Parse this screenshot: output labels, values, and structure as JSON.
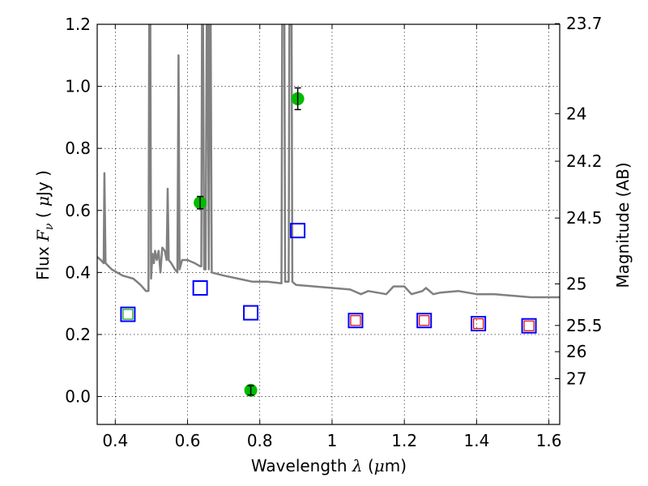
{
  "chart_data": {
    "type": "scatter",
    "xlabel": {
      "prefix": "Wavelength ",
      "symbol": "λ",
      "unit_open": " (",
      "unit_mu": "μ",
      "unit_rest": "m)"
    },
    "ylabel": {
      "prefix": "Flux ",
      "symbol": "F",
      "subscript": "ν",
      "unit_open": " ( ",
      "unit_mu": "μ",
      "unit_rest": "Jy )"
    },
    "y2label": "Magnitude (AB)",
    "xlim": [
      0.35,
      1.63
    ],
    "ylim": [
      -0.09,
      1.2
    ],
    "grid": true,
    "grid_style": "dotted",
    "x_ticks": [
      0.4,
      0.6,
      0.8,
      1.0,
      1.2,
      1.4,
      1.6
    ],
    "x_tick_labels": [
      "0.4",
      "0.6",
      "0.8",
      "1",
      "1.2",
      "1.4",
      "1.6"
    ],
    "y_ticks": [
      0.0,
      0.2,
      0.4,
      0.6,
      0.8,
      1.0,
      1.2
    ],
    "y_tick_labels": [
      "0.0",
      "0.2",
      "0.4",
      "0.6",
      "0.8",
      "1.0",
      "1.2"
    ],
    "mag_ticks": [
      23.7,
      24,
      24.2,
      24.5,
      25,
      25.5,
      26,
      27
    ],
    "mag_tick_labels": [
      "23.7",
      "24",
      "24.2",
      "24.5",
      "25",
      "25.5",
      "26",
      "27"
    ],
    "series": [
      {
        "kind": "line",
        "color": "#808080",
        "points": [
          [
            0.35,
            0.45
          ],
          [
            0.36,
            0.44
          ],
          [
            0.368,
            0.43
          ],
          [
            0.37,
            0.72
          ],
          [
            0.373,
            0.43
          ],
          [
            0.39,
            0.41
          ],
          [
            0.42,
            0.39
          ],
          [
            0.45,
            0.38
          ],
          [
            0.47,
            0.36
          ],
          [
            0.485,
            0.34
          ],
          [
            0.492,
            0.34
          ],
          [
            0.494,
            1.2
          ],
          [
            0.497,
            1.2
          ],
          [
            0.499,
            0.38
          ],
          [
            0.503,
            0.46
          ],
          [
            0.507,
            0.43
          ],
          [
            0.51,
            0.47
          ],
          [
            0.515,
            0.44
          ],
          [
            0.52,
            0.47
          ],
          [
            0.525,
            0.4
          ],
          [
            0.53,
            0.48
          ],
          [
            0.537,
            0.47
          ],
          [
            0.542,
            0.44
          ],
          [
            0.545,
            0.67
          ],
          [
            0.548,
            0.44
          ],
          [
            0.555,
            0.43
          ],
          [
            0.565,
            0.41
          ],
          [
            0.572,
            0.4
          ],
          [
            0.575,
            1.1
          ],
          [
            0.578,
            0.41
          ],
          [
            0.585,
            0.44
          ],
          [
            0.6,
            0.44
          ],
          [
            0.62,
            0.43
          ],
          [
            0.635,
            0.42
          ],
          [
            0.638,
            0.42
          ],
          [
            0.64,
            1.2
          ],
          [
            0.643,
            1.2
          ],
          [
            0.646,
            0.41
          ],
          [
            0.65,
            0.41
          ],
          [
            0.653,
            1.2
          ],
          [
            0.656,
            1.2
          ],
          [
            0.659,
            0.41
          ],
          [
            0.661,
            1.2
          ],
          [
            0.664,
            1.2
          ],
          [
            0.667,
            0.4
          ],
          [
            0.7,
            0.39
          ],
          [
            0.74,
            0.38
          ],
          [
            0.78,
            0.37
          ],
          [
            0.82,
            0.37
          ],
          [
            0.86,
            0.365
          ],
          [
            0.862,
            1.2
          ],
          [
            0.868,
            1.2
          ],
          [
            0.87,
            0.37
          ],
          [
            0.88,
            0.37
          ],
          [
            0.882,
            1.2
          ],
          [
            0.888,
            1.2
          ],
          [
            0.89,
            0.37
          ],
          [
            0.9,
            0.36
          ],
          [
            0.95,
            0.355
          ],
          [
            1.0,
            0.35
          ],
          [
            1.05,
            0.345
          ],
          [
            1.08,
            0.33
          ],
          [
            1.1,
            0.34
          ],
          [
            1.15,
            0.33
          ],
          [
            1.17,
            0.355
          ],
          [
            1.2,
            0.355
          ],
          [
            1.22,
            0.33
          ],
          [
            1.25,
            0.34
          ],
          [
            1.26,
            0.35
          ],
          [
            1.28,
            0.33
          ],
          [
            1.3,
            0.335
          ],
          [
            1.35,
            0.34
          ],
          [
            1.4,
            0.33
          ],
          [
            1.45,
            0.33
          ],
          [
            1.5,
            0.325
          ],
          [
            1.55,
            0.32
          ],
          [
            1.63,
            0.32
          ]
        ]
      },
      {
        "kind": "points_with_errors",
        "color": "#00bb00",
        "points": [
          {
            "x": 0.635,
            "y": 0.625,
            "err": 0.02
          },
          {
            "x": 0.775,
            "y": 0.02,
            "err": 0.015
          },
          {
            "x": 0.905,
            "y": 0.96,
            "err": 0.035
          }
        ]
      },
      {
        "kind": "open_squares",
        "color": "#0000ff",
        "points": [
          {
            "x": 0.435,
            "y": 0.265
          },
          {
            "x": 0.635,
            "y": 0.35
          },
          {
            "x": 0.775,
            "y": 0.27
          },
          {
            "x": 0.905,
            "y": 0.535
          },
          {
            "x": 1.065,
            "y": 0.245
          },
          {
            "x": 1.255,
            "y": 0.245
          },
          {
            "x": 1.405,
            "y": 0.235
          },
          {
            "x": 1.545,
            "y": 0.228
          }
        ]
      },
      {
        "kind": "open_squares_small",
        "color": "#00aa00",
        "points": [
          {
            "x": 0.435,
            "y": 0.265
          }
        ]
      },
      {
        "kind": "open_squares_small",
        "color": "#dd0000",
        "points": [
          {
            "x": 1.065,
            "y": 0.245
          },
          {
            "x": 1.255,
            "y": 0.245
          },
          {
            "x": 1.405,
            "y": 0.235
          },
          {
            "x": 1.545,
            "y": 0.228
          }
        ]
      }
    ]
  }
}
